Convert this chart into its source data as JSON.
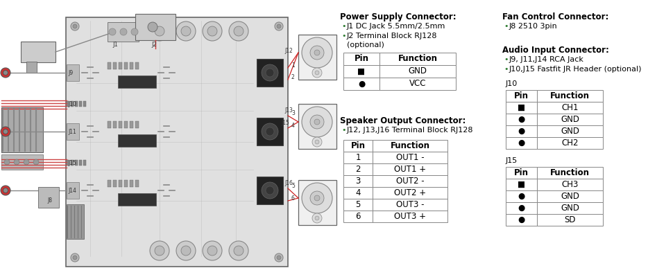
{
  "bg_color": "#ffffff",
  "power_supply": {
    "header": "Power Supply Connector:",
    "bullet1": "J1 DC Jack 5.5mm/2.5mm",
    "bullet2": "J2 Terminal Block RJ128",
    "bullet2b": "(optional)",
    "table_header": [
      "Pin",
      "Function"
    ],
    "table_rows": [
      [
        "■",
        "GND"
      ],
      [
        "●",
        "VCC"
      ]
    ]
  },
  "speaker_output": {
    "header": "Speaker Output Connector:",
    "bullet1": "J12, J13,J16 Terminal Block RJ128",
    "table_header": [
      "Pin",
      "Function"
    ],
    "table_rows": [
      [
        "1",
        "OUT1 -"
      ],
      [
        "2",
        "OUT1 +"
      ],
      [
        "3",
        "OUT2 -"
      ],
      [
        "4",
        "OUT2 +"
      ],
      [
        "5",
        "OUT3 -"
      ],
      [
        "6",
        "OUT3 +"
      ]
    ]
  },
  "fan_control": {
    "header": "Fan Control Connector:",
    "bullet1": "J8 2510 3pin"
  },
  "audio_input": {
    "header": "Audio Input Connector:",
    "bullet1": "J9, J11,J14 RCA Jack",
    "bullet2": "J10,J15 Fastfit JR Header (optional)",
    "j10_label": "J10",
    "j10_table_header": [
      "Pin",
      "Function"
    ],
    "j10_table_rows": [
      [
        "■",
        "CH1"
      ],
      [
        "●",
        "GND"
      ],
      [
        "●",
        "GND"
      ],
      [
        "●",
        "CH2"
      ]
    ],
    "j15_label": "J15",
    "j15_table_header": [
      "Pin",
      "Function"
    ],
    "j15_table_rows": [
      [
        "■",
        "CH3"
      ],
      [
        "●",
        "GND"
      ],
      [
        "●",
        "GND"
      ],
      [
        "●",
        "SD"
      ]
    ]
  },
  "bullet_color": "#2e7d32",
  "text_color": "#000000",
  "table_line_color": "#888888",
  "pcb_color": "#d8d8d8",
  "pcb_border": "#666666"
}
